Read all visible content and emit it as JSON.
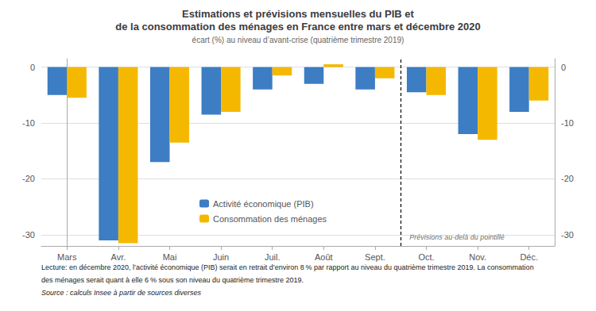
{
  "chart_data": {
    "type": "bar",
    "title": "Estimations et prévisions mensuelles du PIB et\nde la consommation des ménages en France entre mars et décembre 2020",
    "subtitle": "écart (%) au niveau d’avant-crise (quatrième trimestre 2019)",
    "categories": [
      "Mars",
      "Avr.",
      "Mai",
      "Juin",
      "Juil.",
      "Août",
      "Sept.",
      "Oct.",
      "Nov.",
      "Déc."
    ],
    "series": [
      {
        "name": "Activité économique (PIB)",
        "color": "#3C7DC4",
        "values": [
          -5.0,
          -31.0,
          -17.0,
          -8.5,
          -4.0,
          -3.0,
          -4.0,
          -4.5,
          -12.0,
          -8.0
        ]
      },
      {
        "name": "Consommation des ménages",
        "color": "#F5B800",
        "values": [
          -5.5,
          -31.5,
          -13.5,
          -8.0,
          -1.5,
          0.5,
          -2.0,
          -5.0,
          -13.0,
          -6.0
        ]
      }
    ],
    "ylim": [
      -32,
      1.5
    ],
    "yticks": [
      0,
      -10,
      -20,
      -30
    ],
    "y2lim": [
      -32,
      1.5
    ],
    "y2ticks": [
      0,
      -10,
      -20,
      -30
    ],
    "grid": true,
    "legend": "lower left",
    "dashed_line_x": 6.5,
    "annotations": [
      {
        "text": "Prévisions au-delà du pointillé",
        "x": 6.5,
        "y": -31.4
      }
    ],
    "footer": [
      "Lecture: en décembre 2020, l’activité économique (PIB) serait en retrait d’environ 8 % par rapport au niveau du quatrième trimestre 2019. La consommation",
      "des ménages serait quant à elle 6 % sous son niveau du quatrième trimestre 2019.",
      "Source : calculs Insee à partir de sources diverses"
    ]
  }
}
